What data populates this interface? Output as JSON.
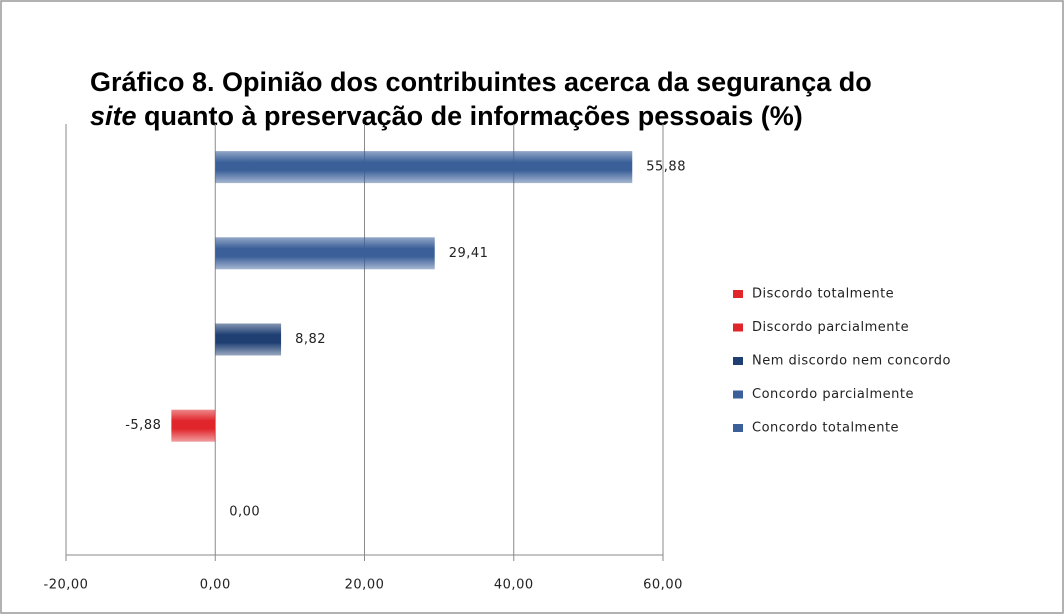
{
  "chart_data": {
    "type": "hbar",
    "title": [
      "Gráfico 8. Opinião dos contribuintes acerca da segurança do",
      "site",
      "quanto à preservação de informações pessoais (%)"
    ],
    "series": [
      {
        "name": "Discordo totalmente",
        "color": "#e0262b",
        "values": [
          0
        ],
        "value_labels": [
          "0,00"
        ]
      },
      {
        "name": "Discordo parcialmente",
        "color": "#e0262b",
        "values": [
          -5.88
        ],
        "value_labels": [
          "-5,88"
        ]
      },
      {
        "name": "Nem discordo nem concordo",
        "color": "#1f3f73",
        "values": [
          8.82
        ],
        "value_labels": [
          "8,82"
        ]
      },
      {
        "name": "Concordo parcialmente",
        "color": "#3a5f99",
        "values": [
          29.41
        ],
        "value_labels": [
          "29,41"
        ]
      },
      {
        "name": "Concordo totalmente",
        "color": "#3a5f99",
        "values": [
          55.88
        ],
        "value_labels": [
          "55,88"
        ]
      }
    ],
    "xlim": [
      -20,
      60
    ],
    "xticks": [
      {
        "value": -20,
        "label": "-20,00"
      },
      {
        "value": 0,
        "label": "0,00"
      },
      {
        "value": 20,
        "label": "20,00"
      },
      {
        "value": 40,
        "label": "40,00"
      },
      {
        "value": 60,
        "label": "60,00"
      }
    ],
    "grid": true
  }
}
